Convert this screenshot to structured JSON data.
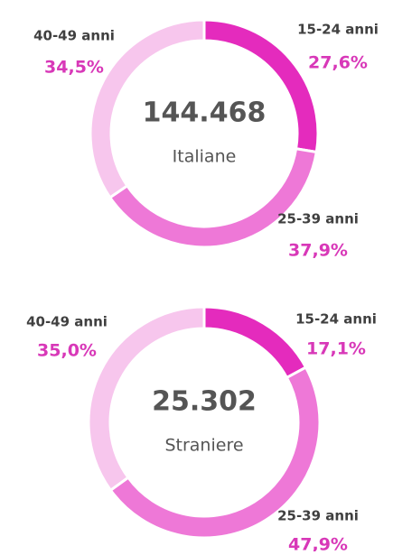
{
  "chart_data": [
    {
      "type": "pie",
      "center_title": "144.468",
      "center_subtitle": "Italiane",
      "categories": [
        "15-24 anni",
        "25-39 anni",
        "40-49 anni"
      ],
      "values": [
        27.6,
        37.9,
        34.5
      ],
      "value_labels": [
        "27,6%",
        "37,9%",
        "34,5%"
      ],
      "colors": [
        "#e42bbd",
        "#ee78d7",
        "#f7c6ed"
      ]
    },
    {
      "type": "pie",
      "center_title": "25.302",
      "center_subtitle": "Straniere",
      "categories": [
        "15-24 anni",
        "25-39 anni",
        "40-49 anni"
      ],
      "values": [
        17.1,
        47.9,
        35.0
      ],
      "value_labels": [
        "17,1%",
        "47,9%",
        "35,0%"
      ],
      "colors": [
        "#e42bbd",
        "#ee78d7",
        "#f7c6ed"
      ]
    }
  ]
}
